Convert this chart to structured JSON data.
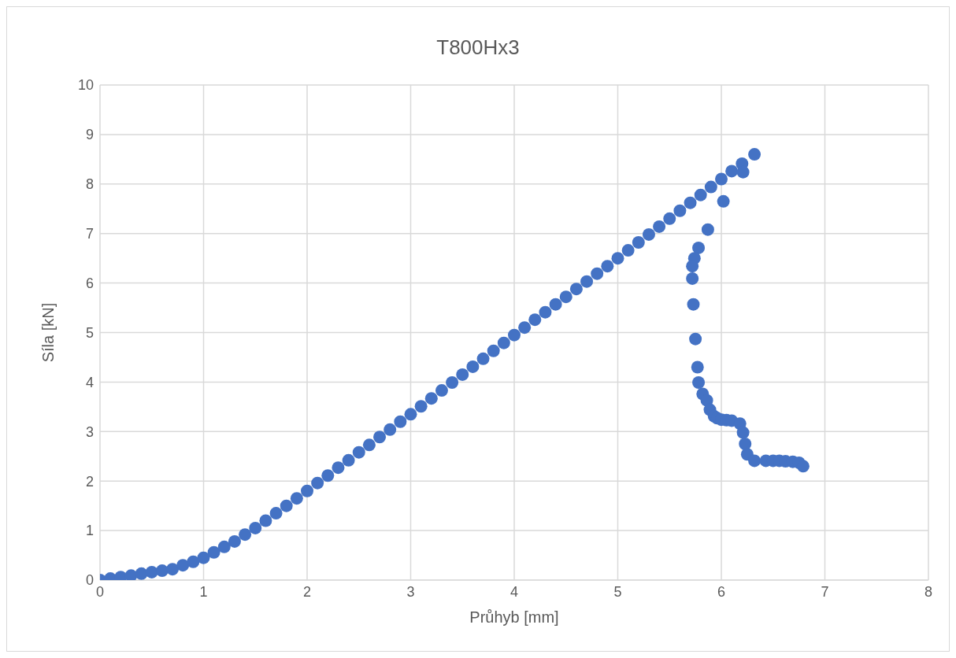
{
  "chart_data": {
    "type": "scatter",
    "title": "T800Hx3",
    "xlabel": "Průhyb [mm]",
    "ylabel": "Síla [kN]",
    "xlim": [
      0,
      8
    ],
    "xticks": [
      0,
      1,
      2,
      3,
      4,
      5,
      6,
      7,
      8
    ],
    "ylim": [
      0,
      10
    ],
    "yticks": [
      0,
      1,
      2,
      3,
      4,
      5,
      6,
      7,
      8,
      9,
      10
    ],
    "grid": true,
    "marker": "circle",
    "series": [
      {
        "color": "#4472c4",
        "x": [
          0,
          0.1,
          0.2,
          0.3,
          0.4,
          0.5,
          0.6,
          0.7,
          0.8,
          0.9,
          1.0,
          1.1,
          1.2,
          1.3,
          1.4,
          1.5,
          1.6,
          1.7,
          1.8,
          1.9,
          2.0,
          2.1,
          2.2,
          2.3,
          2.4,
          2.5,
          2.6,
          2.7,
          2.8,
          2.9,
          3.0,
          3.1,
          3.2,
          3.3,
          3.4,
          3.5,
          3.6,
          3.7,
          3.8,
          3.9,
          4.0,
          4.1,
          4.2,
          4.3,
          4.4,
          4.5,
          4.6,
          4.7,
          4.8,
          4.9,
          5.0,
          5.1,
          5.2,
          5.3,
          5.4,
          5.5,
          5.6,
          5.7,
          5.8,
          5.9,
          6.0,
          6.1,
          6.2,
          6.32,
          6.21,
          6.02,
          5.87,
          5.78,
          5.74,
          5.72,
          5.72,
          5.73,
          5.75,
          5.77,
          5.78,
          5.82,
          5.86,
          5.89,
          5.93,
          5.96,
          6.0,
          6.05,
          6.1,
          6.18,
          6.21,
          6.23,
          6.25,
          6.32,
          6.43,
          6.5,
          6.56,
          6.62,
          6.69,
          6.75,
          6.79
        ],
        "values": [
          0,
          0.03,
          0.06,
          0.09,
          0.13,
          0.16,
          0.19,
          0.22,
          0.3,
          0.37,
          0.45,
          0.56,
          0.67,
          0.78,
          0.92,
          1.05,
          1.2,
          1.35,
          1.5,
          1.65,
          1.8,
          1.96,
          2.11,
          2.27,
          2.42,
          2.58,
          2.73,
          2.89,
          3.04,
          3.2,
          3.35,
          3.51,
          3.67,
          3.83,
          3.99,
          4.15,
          4.31,
          4.47,
          4.63,
          4.79,
          4.95,
          5.1,
          5.26,
          5.41,
          5.57,
          5.72,
          5.88,
          6.03,
          6.19,
          6.34,
          6.5,
          6.66,
          6.82,
          6.98,
          7.14,
          7.3,
          7.46,
          7.62,
          7.78,
          7.94,
          8.1,
          8.26,
          8.41,
          8.6,
          8.24,
          7.65,
          7.08,
          6.71,
          6.5,
          6.34,
          6.09,
          5.57,
          4.87,
          4.3,
          3.99,
          3.76,
          3.63,
          3.44,
          3.31,
          3.27,
          3.24,
          3.23,
          3.22,
          3.16,
          2.98,
          2.75,
          2.54,
          2.41,
          2.41,
          2.41,
          2.41,
          2.4,
          2.39,
          2.37,
          2.3
        ]
      }
    ]
  }
}
